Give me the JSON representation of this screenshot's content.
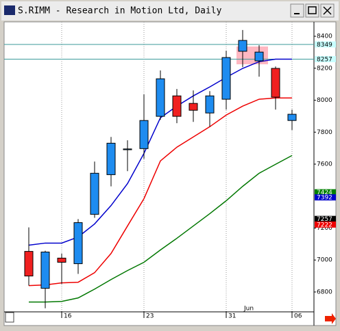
{
  "chart_data": {
    "type": "candlestick",
    "title": "S.RIMM - Research in Motion Ltd, Daily",
    "categories": [
      null,
      null,
      "16",
      null,
      null,
      null,
      null,
      "23",
      null,
      null,
      null,
      null,
      "31",
      null,
      null,
      null,
      "06"
    ],
    "month_label": "Jun",
    "open": [
      7054,
      6823,
      7012,
      6977,
      7286,
      7534,
      7690,
      7697,
      7899,
      8027,
      7980,
      7920,
      8006,
      8306,
      8246,
      8199,
      7873
    ],
    "high": [
      7204,
      7058,
      7041,
      7256,
      7616,
      7770,
      7749,
      8036,
      8186,
      8070,
      8061,
      8057,
      8310,
      8439,
      8344,
      8211,
      7941
    ],
    "low": [
      6840,
      6698,
      6850,
      6913,
      7264,
      7461,
      7556,
      7633,
      7877,
      7856,
      7864,
      7834,
      7941,
      8207,
      8147,
      7941,
      7813
    ],
    "close": [
      6900,
      7050,
      6986,
      7234,
      7543,
      7731,
      7695,
      7873,
      8134,
      7899,
      7937,
      8027,
      8267,
      8374,
      8301,
      8019,
      7912
    ],
    "up_color": "#1e8cf0",
    "down_color": "#f02020",
    "lines": [
      {
        "color": "#0000cc",
        "values": [
          7093,
          7106,
          7106,
          7144,
          7226,
          7341,
          7478,
          7667,
          7890,
          7963,
          8027,
          8083,
          8143,
          8199,
          8241,
          8257,
          8257
        ]
      },
      {
        "color": "#ee0000",
        "values": [
          6840,
          6844,
          6857,
          6861,
          6921,
          7041,
          7213,
          7384,
          7620,
          7706,
          7770,
          7834,
          7907,
          7963,
          8006,
          8014,
          8014
        ]
      },
      {
        "color": "#007700",
        "values": [
          6737,
          6737,
          6741,
          6763,
          6818,
          6878,
          6934,
          6986,
          7063,
          7136,
          7213,
          7290,
          7371,
          7461,
          7543,
          7599,
          7654
        ]
      }
    ],
    "price_labels": [
      {
        "value": 8349,
        "color": "#c8ffff",
        "text_color": "#000000",
        "line": true
      },
      {
        "value": 8257,
        "color": "#c8ffff",
        "text_color": "#000000",
        "line": true
      },
      {
        "value": 7424,
        "color": "#008000",
        "text_color": "#ffffff",
        "line": false
      },
      {
        "value": 7392,
        "color": "#0000cc",
        "text_color": "#ffffff",
        "line": false
      },
      {
        "value": 7257,
        "color": "#000000",
        "text_color": "#ffffff",
        "line": false
      },
      {
        "value": 7222,
        "color": "#ee0000",
        "text_color": "#ffffff",
        "line": false
      }
    ],
    "ref_line_color": "#3a9a9a",
    "ylim": [
      6680,
      8490
    ],
    "yticks": [
      6800,
      7000,
      7200,
      7600,
      7800,
      8000,
      8200,
      8400
    ]
  }
}
